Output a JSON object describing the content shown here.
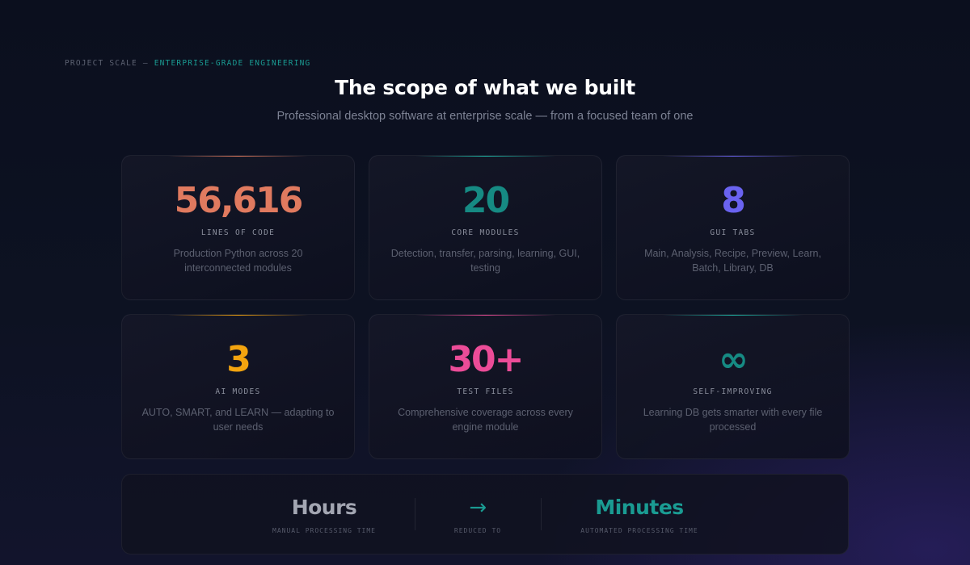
{
  "header": {
    "eyebrow_prefix": "PROJECT SCALE —",
    "eyebrow_accent": "ENTERPRISE-GRADE ENGINEERING",
    "title": "The scope of what we built",
    "subtitle": "Professional desktop software at enterprise scale — from a focused team of one"
  },
  "stats": [
    {
      "value": "56,616",
      "label": "LINES OF CODE",
      "desc": "Production Python across 20 interconnected modules",
      "color": "#e07a5f",
      "accent": "#e07a5f"
    },
    {
      "value": "20",
      "label": "CORE MODULES",
      "desc": "Detection, transfer, parsing, learning, GUI, testing",
      "color": "#168a83",
      "accent": "#1fb7a8"
    },
    {
      "value": "8",
      "label": "GUI TABS",
      "desc": "Main, Analysis, Recipe, Preview, Learn, Batch, Library, DB",
      "color": "#6a63f0",
      "accent": "#6a63f0"
    },
    {
      "value": "3",
      "label": "AI MODES",
      "desc": "AUTO, SMART, and LEARN — adapting to user needs",
      "color": "#f3a40f",
      "accent": "#f3a40f"
    },
    {
      "value": "30+",
      "label": "TEST FILES",
      "desc": "Comprehensive coverage across every engine module",
      "color": "#ec4c98",
      "accent": "#ec4c98"
    },
    {
      "value": "∞",
      "label": "SELF-IMPROVING",
      "desc": "Learning DB gets smarter with every file processed",
      "color": "#168a83",
      "accent": "#1fb7a8"
    }
  ],
  "comparison": {
    "before_value": "Hours",
    "before_label": "MANUAL PROCESSING TIME",
    "arrow": "→",
    "arrow_label": "REDUCED TO",
    "after_value": "Minutes",
    "after_label": "AUTOMATED PROCESSING TIME",
    "before_color": "#a3a6b2",
    "after_color": "#1a9b92"
  }
}
